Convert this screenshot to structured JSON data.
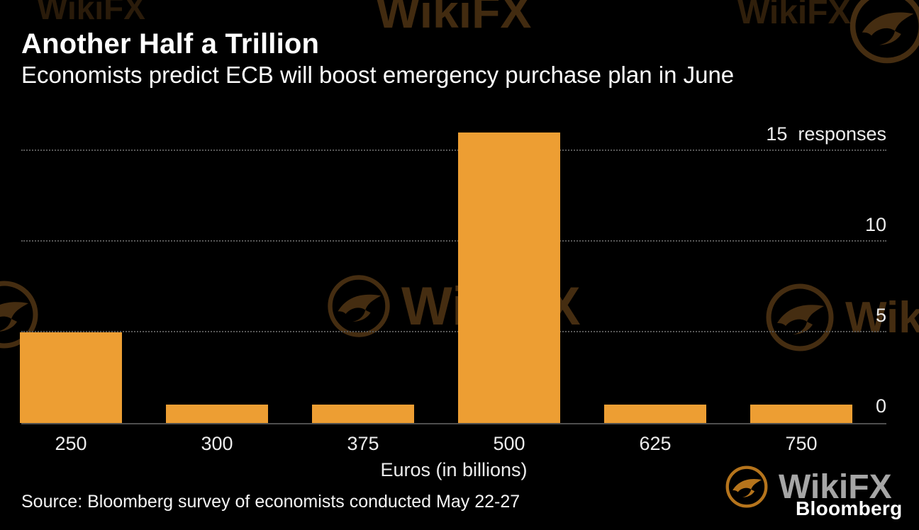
{
  "header": {
    "title": "Another Half a Trillion",
    "subtitle": "Economists predict ECB will boost emergency purchase plan in June"
  },
  "chart_data": {
    "type": "bar",
    "title": "Another Half a Trillion",
    "subtitle": "Economists predict ECB will boost emergency purchase plan in June",
    "categories": [
      "250",
      "300",
      "375",
      "500",
      "625",
      "750"
    ],
    "values": [
      5,
      1,
      1,
      16,
      1,
      1
    ],
    "xlabel": "Euros (in billions)",
    "ylabel": "responses",
    "ylim": [
      0,
      16
    ],
    "yticks": [
      {
        "value": 0,
        "label": "0"
      },
      {
        "value": 5,
        "label": "5"
      },
      {
        "value": 10,
        "label": "10"
      },
      {
        "value": 15,
        "label": "15  responses"
      }
    ],
    "grid": "horizontal dotted",
    "legend": "none",
    "bar_color": "#ED9E33",
    "background_color": "#000000"
  },
  "footer": {
    "source": "Source: Bloomberg survey of economists conducted May 22-27"
  },
  "branding": {
    "bloomberg": "Bloomberg",
    "watermark": "WikiFX"
  }
}
